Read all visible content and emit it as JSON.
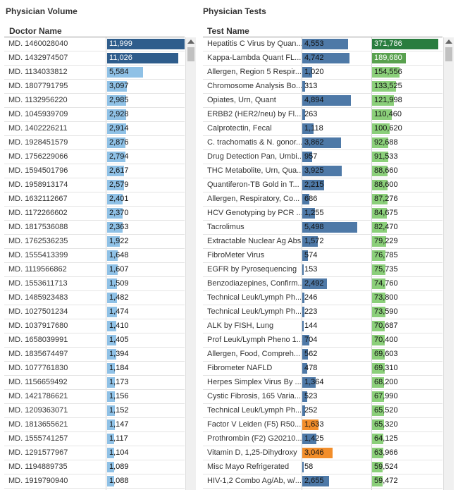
{
  "left": {
    "title": "Physician Volume",
    "header": "Doctor Name",
    "scale_max": 11999,
    "colors": {
      "dark": "#2f5d8c",
      "light": "#8fc1e6"
    },
    "rows": [
      {
        "name": "MD. 1460028040",
        "value": 11999,
        "label": "11,999",
        "tone": "dark"
      },
      {
        "name": "MD. 1432974507",
        "value": 11026,
        "label": "11,026",
        "tone": "dark"
      },
      {
        "name": "MD. 1134033812",
        "value": 5584,
        "label": "5,584",
        "tone": "light"
      },
      {
        "name": "MD. 1807791795",
        "value": 3097,
        "label": "3,097",
        "tone": "light"
      },
      {
        "name": "MD. 1132956220",
        "value": 2985,
        "label": "2,985",
        "tone": "light"
      },
      {
        "name": "MD. 1045939709",
        "value": 2928,
        "label": "2,928",
        "tone": "light"
      },
      {
        "name": "MD. 1402226211",
        "value": 2914,
        "label": "2,914",
        "tone": "light"
      },
      {
        "name": "MD. 1928451579",
        "value": 2876,
        "label": "2,876",
        "tone": "light"
      },
      {
        "name": "MD. 1756229066",
        "value": 2794,
        "label": "2,794",
        "tone": "light"
      },
      {
        "name": "MD. 1594501796",
        "value": 2617,
        "label": "2,617",
        "tone": "light"
      },
      {
        "name": "MD. 1958913174",
        "value": 2579,
        "label": "2,579",
        "tone": "light"
      },
      {
        "name": "MD. 1632112667",
        "value": 2401,
        "label": "2,401",
        "tone": "light"
      },
      {
        "name": "MD. 1172266602",
        "value": 2370,
        "label": "2,370",
        "tone": "light"
      },
      {
        "name": "MD. 1817536088",
        "value": 2363,
        "label": "2,363",
        "tone": "light"
      },
      {
        "name": "MD. 1762536235",
        "value": 1922,
        "label": "1,922",
        "tone": "light"
      },
      {
        "name": "MD. 1555413399",
        "value": 1648,
        "label": "1,648",
        "tone": "light"
      },
      {
        "name": "MD. 1119566862",
        "value": 1607,
        "label": "1,607",
        "tone": "light"
      },
      {
        "name": "MD. 1553611713",
        "value": 1509,
        "label": "1,509",
        "tone": "light"
      },
      {
        "name": "MD. 1485923483",
        "value": 1482,
        "label": "1,482",
        "tone": "light"
      },
      {
        "name": "MD. 1027501234",
        "value": 1474,
        "label": "1,474",
        "tone": "light"
      },
      {
        "name": "MD. 1037917680",
        "value": 1410,
        "label": "1,410",
        "tone": "light"
      },
      {
        "name": "MD. 1658039991",
        "value": 1405,
        "label": "1,405",
        "tone": "light"
      },
      {
        "name": "MD. 1835674497",
        "value": 1394,
        "label": "1,394",
        "tone": "light"
      },
      {
        "name": "MD. 1077761830",
        "value": 1184,
        "label": "1,184",
        "tone": "light"
      },
      {
        "name": "MD. 1156659492",
        "value": 1173,
        "label": "1,173",
        "tone": "light"
      },
      {
        "name": "MD. 1421786621",
        "value": 1156,
        "label": "1,156",
        "tone": "light"
      },
      {
        "name": "MD. 1209363071",
        "value": 1152,
        "label": "1,152",
        "tone": "light"
      },
      {
        "name": "MD. 1813655621",
        "value": 1147,
        "label": "1,147",
        "tone": "light"
      },
      {
        "name": "MD. 1555741257",
        "value": 1117,
        "label": "1,117",
        "tone": "light"
      },
      {
        "name": "MD. 1291577967",
        "value": 1104,
        "label": "1,104",
        "tone": "light"
      },
      {
        "name": "MD. 1194889735",
        "value": 1089,
        "label": "1,089",
        "tone": "light"
      },
      {
        "name": "MD. 1919790940",
        "value": 1088,
        "label": "1,088",
        "tone": "light"
      }
    ]
  },
  "right": {
    "title": "Physician Tests",
    "header": "Test Name",
    "scale_max_a": 5498,
    "scale_max_b": 371786,
    "colors": {
      "blue": "#4e79a7",
      "orange": "#f28e2b",
      "green_dark": "#2a7d3f",
      "green": "#59a14f",
      "green_light": "#8bcf7a"
    },
    "rows": [
      {
        "name": "Hepatitis C Virus by Quan...",
        "a": 4553,
        "a_label": "4,553",
        "a_tone": "blue",
        "b": 371786,
        "b_label": "371,786",
        "b_tone": "green_dark"
      },
      {
        "name": "Kappa-Lambda Quant FL...",
        "a": 4742,
        "a_label": "4,742",
        "a_tone": "blue",
        "b": 189680,
        "b_label": "189,680",
        "b_tone": "green"
      },
      {
        "name": "Allergen, Region 5 Respir...",
        "a": 1020,
        "a_label": "1,020",
        "a_tone": "blue",
        "b": 154556,
        "b_label": "154,556",
        "b_tone": "green_light"
      },
      {
        "name": "Chromosome Analysis Bo...",
        "a": 313,
        "a_label": "313",
        "a_tone": "blue",
        "b": 133525,
        "b_label": "133,525",
        "b_tone": "green_light"
      },
      {
        "name": "Opiates, Urn, Quant",
        "a": 4894,
        "a_label": "4,894",
        "a_tone": "blue",
        "b": 121998,
        "b_label": "121,998",
        "b_tone": "green_light"
      },
      {
        "name": "ERBB2 (HER2/neu) by Fl...",
        "a": 263,
        "a_label": "263",
        "a_tone": "blue",
        "b": 110460,
        "b_label": "110,460",
        "b_tone": "green_light"
      },
      {
        "name": "Calprotectin, Fecal",
        "a": 1118,
        "a_label": "1,118",
        "a_tone": "blue",
        "b": 100620,
        "b_label": "100,620",
        "b_tone": "green_light"
      },
      {
        "name": "C. trachomatis & N. gonor...",
        "a": 3862,
        "a_label": "3,862",
        "a_tone": "blue",
        "b": 92688,
        "b_label": "92,688",
        "b_tone": "green_light"
      },
      {
        "name": "Drug Detection Pan, Umbi...",
        "a": 957,
        "a_label": "957",
        "a_tone": "blue",
        "b": 91533,
        "b_label": "91,533",
        "b_tone": "green_light"
      },
      {
        "name": "THC Metabolite, Urn, Qua...",
        "a": 3925,
        "a_label": "3,925",
        "a_tone": "blue",
        "b": 88660,
        "b_label": "88,660",
        "b_tone": "green_light"
      },
      {
        "name": "Quantiferon-TB Gold in T...",
        "a": 2215,
        "a_label": "2,215",
        "a_tone": "blue",
        "b": 88600,
        "b_label": "88,600",
        "b_tone": "green_light"
      },
      {
        "name": "Allergen, Respiratory, Co...",
        "a": 686,
        "a_label": "686",
        "a_tone": "blue",
        "b": 87276,
        "b_label": "87,276",
        "b_tone": "green_light"
      },
      {
        "name": "HCV Genotyping by PCR ...",
        "a": 1255,
        "a_label": "1,255",
        "a_tone": "blue",
        "b": 84675,
        "b_label": "84,675",
        "b_tone": "green_light"
      },
      {
        "name": "Tacrolimus",
        "a": 5498,
        "a_label": "5,498",
        "a_tone": "blue",
        "b": 82470,
        "b_label": "82,470",
        "b_tone": "green_light"
      },
      {
        "name": "Extractable Nuclear Ag Abs",
        "a": 1572,
        "a_label": "1,572",
        "a_tone": "blue",
        "b": 79229,
        "b_label": "79,229",
        "b_tone": "green_light"
      },
      {
        "name": "FibroMeter Virus",
        "a": 574,
        "a_label": "574",
        "a_tone": "blue",
        "b": 76785,
        "b_label": "76,785",
        "b_tone": "green_light"
      },
      {
        "name": "EGFR by Pyrosequencing",
        "a": 153,
        "a_label": "153",
        "a_tone": "blue",
        "b": 75735,
        "b_label": "75,735",
        "b_tone": "green_light"
      },
      {
        "name": "Benzodiazepines, Confirm...",
        "a": 2492,
        "a_label": "2,492",
        "a_tone": "blue",
        "b": 74760,
        "b_label": "74,760",
        "b_tone": "green_light"
      },
      {
        "name": "Technical Leuk/Lymph Ph...",
        "a": 246,
        "a_label": "246",
        "a_tone": "blue",
        "b": 73800,
        "b_label": "73,800",
        "b_tone": "green_light"
      },
      {
        "name": "Technical Leuk/Lymph Ph...",
        "a": 223,
        "a_label": "223",
        "a_tone": "blue",
        "b": 73590,
        "b_label": "73,590",
        "b_tone": "green_light"
      },
      {
        "name": "ALK by FISH, Lung",
        "a": 144,
        "a_label": "144",
        "a_tone": "blue",
        "b": 70687,
        "b_label": "70,687",
        "b_tone": "green_light"
      },
      {
        "name": "Prof Leuk/Lymph Pheno 1...",
        "a": 704,
        "a_label": "704",
        "a_tone": "blue",
        "b": 70400,
        "b_label": "70,400",
        "b_tone": "green_light"
      },
      {
        "name": "Allergen, Food, Compreh...",
        "a": 562,
        "a_label": "562",
        "a_tone": "blue",
        "b": 69603,
        "b_label": "69,603",
        "b_tone": "green_light"
      },
      {
        "name": "Fibrometer NAFLD",
        "a": 478,
        "a_label": "478",
        "a_tone": "blue",
        "b": 69310,
        "b_label": "69,310",
        "b_tone": "green_light"
      },
      {
        "name": "Herpes Simplex Virus By ...",
        "a": 1364,
        "a_label": "1,364",
        "a_tone": "blue",
        "b": 68200,
        "b_label": "68,200",
        "b_tone": "green_light"
      },
      {
        "name": "Cystic Fibrosis, 165 Varia...",
        "a": 523,
        "a_label": "523",
        "a_tone": "blue",
        "b": 67990,
        "b_label": "67,990",
        "b_tone": "green_light"
      },
      {
        "name": "Technical Leuk/Lymph Ph...",
        "a": 252,
        "a_label": "252",
        "a_tone": "blue",
        "b": 65520,
        "b_label": "65,520",
        "b_tone": "green_light"
      },
      {
        "name": "Factor V Leiden (F5) R50...",
        "a": 1633,
        "a_label": "1,633",
        "a_tone": "orange",
        "b": 65320,
        "b_label": "65,320",
        "b_tone": "green_light"
      },
      {
        "name": "Prothrombin (F2) G20210...",
        "a": 1425,
        "a_label": "1,425",
        "a_tone": "blue",
        "b": 64125,
        "b_label": "64,125",
        "b_tone": "green_light"
      },
      {
        "name": "Vitamin D, 1,25-Dihydroxy",
        "a": 3046,
        "a_label": "3,046",
        "a_tone": "orange",
        "b": 63966,
        "b_label": "63,966",
        "b_tone": "green_light"
      },
      {
        "name": "Misc Mayo Refrigerated",
        "a": 58,
        "a_label": "58",
        "a_tone": "blue",
        "b": 59524,
        "b_label": "59,524",
        "b_tone": "green_light"
      },
      {
        "name": "HIV-1,2 Combo Ag/Ab, w/...",
        "a": 2655,
        "a_label": "2,655",
        "a_tone": "blue",
        "b": 59472,
        "b_label": "59,472",
        "b_tone": "green_light"
      }
    ]
  }
}
